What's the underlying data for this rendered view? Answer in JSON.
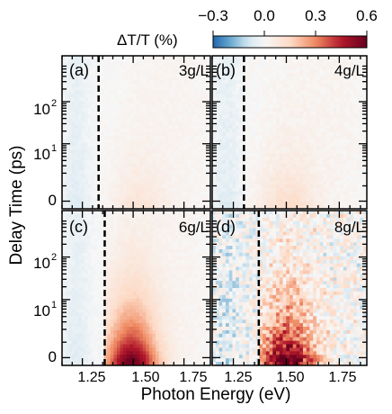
{
  "chart_data": {
    "type": "heatmap",
    "colorbar": {
      "label": "ΔT/T (%)",
      "ticks": [
        "−0.3",
        "0.0",
        "0.3",
        "0.6"
      ],
      "tick_values": [
        -0.3,
        0.0,
        0.3,
        0.6
      ],
      "range": [
        -0.3,
        0.6
      ],
      "colormap": [
        "#2166ac",
        "#67a9cf",
        "#d1e5f0",
        "#f7f7f7",
        "#fddbc7",
        "#ef8a62",
        "#b2182b",
        "#67001f"
      ]
    },
    "xlabel": "Photon Energy (eV)",
    "ylabel": "Delay Time (ps)",
    "xticks": [
      "1.25",
      "1.50",
      "1.75"
    ],
    "xtick_values": [
      1.25,
      1.5,
      1.75
    ],
    "xlim": [
      1.15,
      1.88
    ],
    "yticks": [
      "0",
      "10",
      "10",
      "10"
    ],
    "yticks_sup": [
      "",
      "1",
      "2",
      ""
    ],
    "ylim": [
      -0.5,
      700
    ],
    "y_scale": "linear-log (linear near 0, log above)",
    "panels": [
      {
        "label": "(a)",
        "concentration": "3g/L",
        "dashed_line_x": 1.33,
        "peak_x": 1.52,
        "peak_dt": 0.15,
        "noise": 0.03
      },
      {
        "label": "(b)",
        "concentration": "4g/L",
        "dashed_line_x": 1.3,
        "peak_x": 1.5,
        "peak_dt": 0.2,
        "noise": 0.04
      },
      {
        "label": "(c)",
        "concentration": "6g/L",
        "dashed_line_x": 1.36,
        "peak_x": 1.49,
        "peak_dt": 0.6,
        "noise": 0.03
      },
      {
        "label": "(d)",
        "concentration": "8g/L",
        "dashed_line_x": 1.37,
        "peak_x": 1.5,
        "peak_dt": 0.45,
        "noise": 0.15
      }
    ]
  }
}
